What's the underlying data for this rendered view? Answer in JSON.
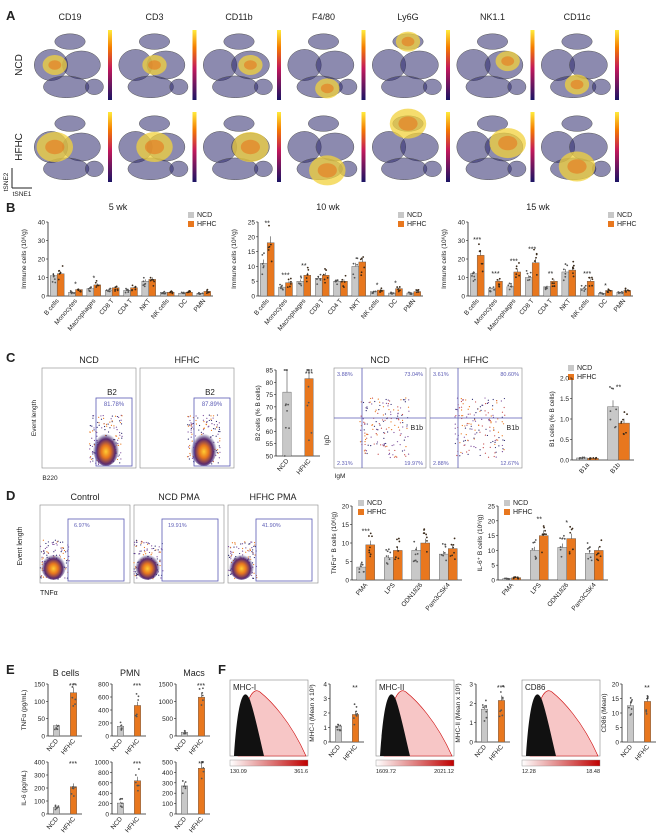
{
  "panels": {
    "A": {
      "letter": "A",
      "markers": [
        "CD19",
        "CD3",
        "CD11b",
        "F4/80",
        "Ly6G",
        "NK1.1",
        "CD11c"
      ],
      "rows": [
        "NCD",
        "HFHC"
      ],
      "axis_y": "tSNE2",
      "axis_x": "tSNE1"
    },
    "B": {
      "letter": "B",
      "legend": [
        "NCD",
        "HFHC"
      ],
      "ylabel": "Immune cells (10⁶/g)",
      "categories": [
        "B cells",
        "Monocytes",
        "Macrophages",
        "CD8 T",
        "CD4 T",
        "NKT",
        "NK cells",
        "DC",
        "PMN"
      ],
      "charts": [
        {
          "title": "5 wk",
          "ymax": 40,
          "ticks": [
            "0",
            "10",
            "20",
            "30",
            "40"
          ],
          "ncd": [
            11,
            2,
            4,
            3,
            3,
            8,
            2,
            1.5,
            1.5
          ],
          "hfhc": [
            12,
            3.5,
            6,
            4.5,
            4.5,
            9,
            2,
            2,
            2.5
          ],
          "sig": [
            "",
            "*",
            "*",
            "",
            "",
            "",
            "",
            "",
            ""
          ]
        },
        {
          "title": "10 wk",
          "ymax": 25,
          "ticks": [
            "0",
            "5",
            "10",
            "15",
            "20",
            "25"
          ],
          "ncd": [
            11,
            3,
            5,
            6,
            5,
            10,
            1.5,
            1,
            1
          ],
          "hfhc": [
            18,
            4.5,
            7,
            7,
            5,
            11.5,
            2,
            2.5,
            1.5
          ],
          "sig": [
            "**",
            "***",
            "**",
            "",
            "",
            "",
            "*",
            "*",
            ""
          ]
        },
        {
          "title": "15 wk",
          "ymax": 40,
          "ticks": [
            "0",
            "10",
            "20",
            "30",
            "40"
          ],
          "ncd": [
            12,
            4,
            5,
            10,
            5,
            13,
            4,
            1.5,
            2
          ],
          "hfhc": [
            22,
            8,
            13,
            18,
            8,
            14,
            8,
            3,
            3
          ],
          "sig": [
            "***",
            "***",
            "***",
            "***",
            "**",
            "",
            "***",
            "*",
            ""
          ]
        }
      ]
    },
    "C": {
      "letter": "C",
      "flow_titles": [
        "NCD",
        "HFHC"
      ],
      "gate_label": "B2",
      "gate_pcts": [
        "81.78%",
        "87.89%"
      ],
      "axis_y": "Event length",
      "axis_x": "B220",
      "b2_chart": {
        "ylabel": "B2 cells (% B cells)",
        "ticks": [
          "50",
          "55",
          "60",
          "65",
          "70",
          "75",
          "80",
          "85"
        ],
        "ymin": 50,
        "ymax": 85,
        "categories": [
          "NCD",
          "HFHC"
        ],
        "values": [
          76,
          81.5
        ],
        "sig": "***"
      },
      "quad_titles": [
        "NCD",
        "HFHC"
      ],
      "quad_pcts": [
        [
          "3.88%",
          "73.04%",
          "2.31%",
          "19.97%"
        ],
        [
          "3.61%",
          "80.60%",
          "2.88%",
          "12.67%"
        ]
      ],
      "quad_gate": "B1b",
      "quad_axis_y": "IgD",
      "quad_axis_x": "IgM",
      "b1_chart": {
        "ylabel": "B1 cells (% B cells)",
        "ticks": [
          "0.0",
          "0.5",
          "1.0",
          "1.5",
          "2.0"
        ],
        "ymax": 2.0,
        "legend": [
          "NCD",
          "HFHC"
        ],
        "categories": [
          "B1a",
          "B1b"
        ],
        "ncd": [
          0.05,
          1.3
        ],
        "hfhc": [
          0.04,
          0.9
        ],
        "sig": [
          "",
          "**"
        ]
      }
    },
    "D": {
      "letter": "D",
      "flow_titles": [
        "Control",
        "NCD PMA",
        "HFHC PMA"
      ],
      "gate_pcts": [
        "6.97%",
        "19.91%",
        "41.90%"
      ],
      "axis_y": "Event length",
      "axis_x": "TNFα",
      "legend": [
        "NCD",
        "HFHC"
      ],
      "categories": [
        "PMA",
        "LPS",
        "ODN1826",
        "Pam3CSK4"
      ],
      "tnf_chart": {
        "ylabel": "TNFα⁺ B cells (10⁶/g)",
        "ticks": [
          "0",
          "5",
          "10",
          "15",
          "20"
        ],
        "ymax": 20,
        "ncd": [
          3.5,
          6,
          8,
          7
        ],
        "hfhc": [
          9.5,
          8,
          10,
          8.5
        ],
        "sig": [
          "***",
          "",
          "",
          ""
        ]
      },
      "il6_chart": {
        "ylabel": "IL-6⁺ B cells (10⁶/g)",
        "ticks": [
          "0",
          "5",
          "10",
          "15",
          "20",
          "25"
        ],
        "ymax": 25,
        "ncd": [
          0.5,
          10,
          11,
          9
        ],
        "hfhc": [
          0.8,
          15,
          14,
          10
        ],
        "sig": [
          "",
          "**",
          "*",
          ""
        ]
      }
    },
    "E": {
      "letter": "E",
      "col_titles": [
        "B cells",
        "PMN",
        "Macs"
      ],
      "categories": [
        "NCD",
        "HFHC"
      ],
      "row_labels": [
        "TNFα (pg/mL)",
        "IL-6 (pg/mL)"
      ],
      "charts": [
        {
          "ymax": 150,
          "ticks": [
            "0",
            "50",
            "100",
            "150"
          ],
          "values": [
            30,
            125
          ],
          "sig": "***"
        },
        {
          "ymax": 800,
          "ticks": [
            "0",
            "200",
            "400",
            "600",
            "800"
          ],
          "values": [
            150,
            470
          ],
          "sig": "***"
        },
        {
          "ymax": 1500,
          "ticks": [
            "0",
            "500",
            "1000",
            "1500"
          ],
          "values": [
            110,
            1120
          ],
          "sig": "***"
        },
        {
          "ymax": 400,
          "ticks": [
            "0",
            "100",
            "200",
            "300",
            "400"
          ],
          "values": [
            50,
            210
          ],
          "sig": "***"
        },
        {
          "ymax": 1000,
          "ticks": [
            "0",
            "200",
            "400",
            "600",
            "800",
            "1000"
          ],
          "values": [
            210,
            640
          ],
          "sig": "***"
        },
        {
          "ymax": 500,
          "ticks": [
            "0",
            "100",
            "200",
            "300",
            "400",
            "500"
          ],
          "values": [
            270,
            440
          ],
          "sig": "**"
        }
      ]
    },
    "F": {
      "letter": "F",
      "histos": [
        {
          "label": "MHC-I",
          "scale_min": "130.09",
          "scale_max": "361.6"
        },
        {
          "label": "MHC-II",
          "scale_min": "1609.72",
          "scale_max": "2021.12"
        },
        {
          "label": "CD86",
          "scale_min": "12.28",
          "scale_max": "18.48"
        }
      ],
      "charts": [
        {
          "ylabel": "MHC-I (Mean x 10³)",
          "ticks": [
            "0",
            "1",
            "2",
            "3",
            "4"
          ],
          "ymax": 4,
          "values": [
            1.1,
            1.9
          ],
          "sig": "**"
        },
        {
          "ylabel": "MHC-II (Mean x 10³)",
          "ticks": [
            "0",
            "1",
            "2",
            "3"
          ],
          "ymax": 3,
          "values": [
            1.7,
            2.15
          ],
          "sig": "***"
        },
        {
          "ylabel": "CD86 (Mean)",
          "ticks": [
            "0",
            "5",
            "10",
            "15",
            "20"
          ],
          "ymax": 20,
          "values": [
            12.5,
            14
          ],
          "sig": "**"
        }
      ],
      "categories": [
        "NCD",
        "HFHC"
      ]
    }
  },
  "colors": {
    "ncd": "#c8c8c8",
    "hfhc": "#e8771e",
    "ncd_dot": "#555555",
    "hfhc_dot": "#3a2a1a",
    "flow_dark": "#2e2a6e",
    "hot": "#f2d23c"
  },
  "chart_data": [
    {
      "type": "bar",
      "title": "5 wk",
      "categories": [
        "B cells",
        "Monocytes",
        "Macrophages",
        "CD8 T",
        "CD4 T",
        "NKT",
        "NK cells",
        "DC",
        "PMN"
      ],
      "series": [
        {
          "name": "NCD",
          "values": [
            11,
            2,
            4,
            3,
            3,
            8,
            2,
            1.5,
            1.5
          ]
        },
        {
          "name": "HFHC",
          "values": [
            12,
            3.5,
            6,
            4.5,
            4.5,
            9,
            2,
            2,
            2.5
          ]
        }
      ],
      "ylabel": "Immune cells (10⁶/g)",
      "ylim": [
        0,
        40
      ]
    },
    {
      "type": "bar",
      "title": "10 wk",
      "categories": [
        "B cells",
        "Monocytes",
        "Macrophages",
        "CD8 T",
        "CD4 T",
        "NKT",
        "NK cells",
        "DC",
        "PMN"
      ],
      "series": [
        {
          "name": "NCD",
          "values": [
            11,
            3,
            5,
            6,
            5,
            10,
            1.5,
            1,
            1
          ]
        },
        {
          "name": "HFHC",
          "values": [
            18,
            4.5,
            7,
            7,
            5,
            11.5,
            2,
            2.5,
            1.5
          ]
        }
      ],
      "ylabel": "Immune cells (10⁶/g)",
      "ylim": [
        0,
        25
      ]
    },
    {
      "type": "bar",
      "title": "15 wk",
      "categories": [
        "B cells",
        "Monocytes",
        "Macrophages",
        "CD8 T",
        "CD4 T",
        "NKT",
        "NK cells",
        "DC",
        "PMN"
      ],
      "series": [
        {
          "name": "NCD",
          "values": [
            12,
            4,
            5,
            10,
            5,
            13,
            4,
            1.5,
            2
          ]
        },
        {
          "name": "HFHC",
          "values": [
            22,
            8,
            13,
            18,
            8,
            14,
            8,
            3,
            3
          ]
        }
      ],
      "ylabel": "Immune cells (10⁶/g)",
      "ylim": [
        0,
        40
      ]
    }
  ]
}
